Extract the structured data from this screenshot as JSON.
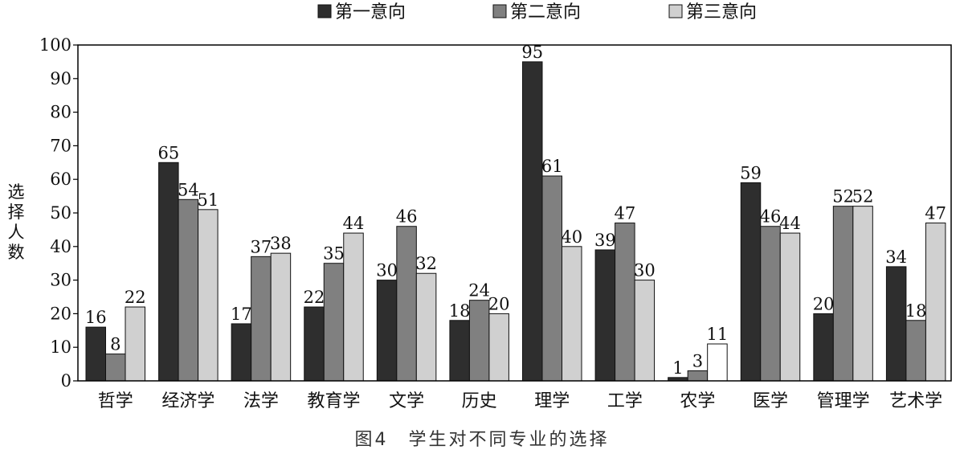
{
  "chart_data": {
    "type": "bar",
    "caption": "图4　学生对不同专业的选择",
    "ylabel": "选择人数",
    "ylim": [
      0,
      100
    ],
    "yticks": [
      0,
      10,
      20,
      30,
      40,
      50,
      60,
      70,
      80,
      90,
      100
    ],
    "legend_position": "top",
    "categories": [
      "哲学",
      "经济学",
      "法学",
      "教育学",
      "文学",
      "历史",
      "理学",
      "工学",
      "农学",
      "医学",
      "管理学",
      "艺术学"
    ],
    "series": [
      {
        "name": "第一意向",
        "color": "#2e2e2e",
        "values": [
          16,
          65,
          17,
          22,
          30,
          18,
          95,
          39,
          1,
          59,
          20,
          34
        ]
      },
      {
        "name": "第二意向",
        "color": "#808080",
        "values": [
          8,
          54,
          37,
          35,
          46,
          24,
          61,
          47,
          3,
          46,
          52,
          18
        ]
      },
      {
        "name": "第三意向",
        "color": "#d0d0d0",
        "values": [
          22,
          51,
          38,
          44,
          32,
          20,
          40,
          30,
          11,
          44,
          52,
          47
        ]
      }
    ],
    "exceptions": [
      {
        "category": "农学",
        "series": "第三意向",
        "color": "#ffffff"
      }
    ]
  }
}
